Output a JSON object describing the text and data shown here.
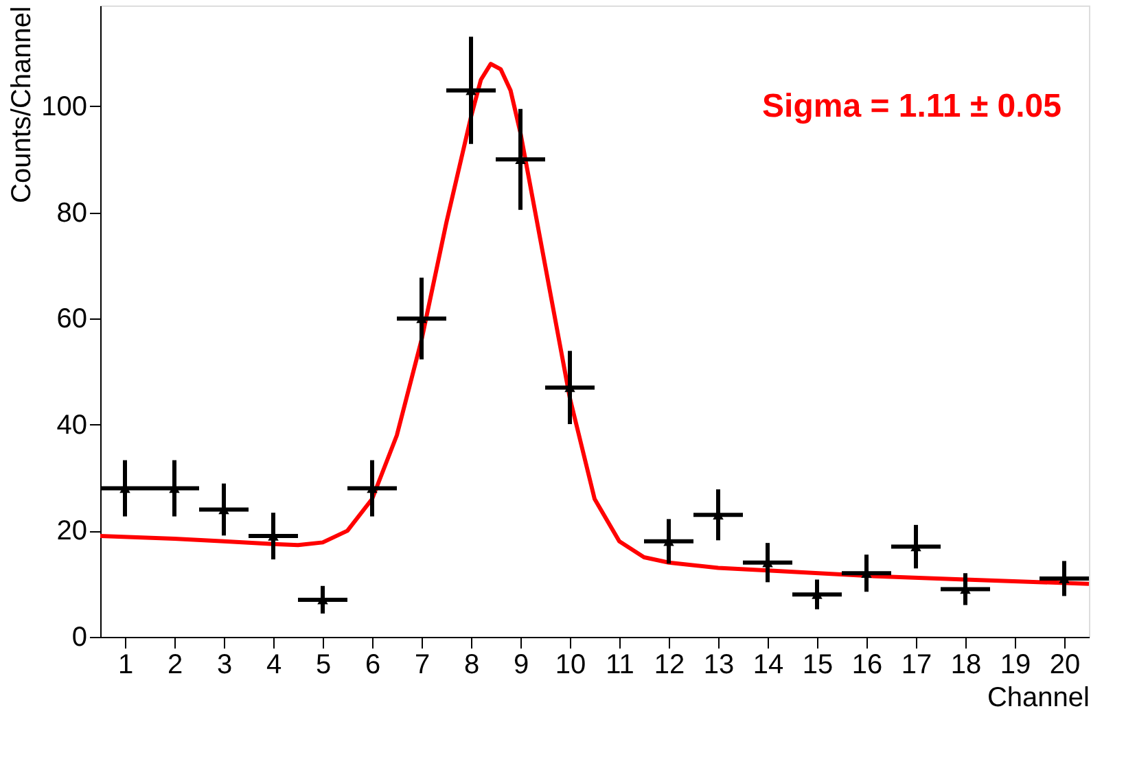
{
  "chart_data": {
    "type": "scatter",
    "xlabel": "Channel",
    "ylabel": "Counts/Channel",
    "xlim": [
      0.5,
      20.5
    ],
    "ylim": [
      0,
      119
    ],
    "xticks": [
      1,
      2,
      3,
      4,
      5,
      6,
      7,
      8,
      9,
      10,
      11,
      12,
      13,
      14,
      15,
      16,
      17,
      18,
      19,
      20
    ],
    "yticks": [
      0,
      20,
      40,
      60,
      80,
      100
    ],
    "annotations": [
      "Sigma = 1.11 ± 0.05"
    ],
    "series": [
      {
        "type": "line",
        "color": "#ff0000",
        "x": [
          0.5,
          2,
          3,
          4,
          4.5,
          5,
          5.5,
          6,
          6.5,
          7,
          7.5,
          8,
          8.2,
          8.4,
          8.6,
          8.8,
          9,
          9.5,
          10,
          10.5,
          11,
          11.5,
          12,
          13,
          14,
          16,
          18,
          20.5
        ],
        "values": [
          19,
          18.5,
          18,
          17.5,
          17.3,
          17.8,
          20,
          26,
          38,
          56,
          78,
          98,
          105,
          108,
          107,
          103,
          95,
          70,
          45,
          26,
          18,
          15,
          14,
          13,
          12.5,
          11.5,
          10.8,
          10
        ]
      },
      {
        "marker": "triangle",
        "color": "#000000",
        "x": [
          1,
          2,
          3,
          4,
          5,
          6,
          7,
          8,
          9,
          10,
          12,
          13,
          14,
          15,
          16,
          17,
          18,
          20
        ],
        "values": [
          28,
          28,
          24,
          19,
          7,
          28,
          60,
          103,
          90,
          47,
          18,
          23,
          14,
          8,
          12,
          17,
          9,
          11
        ],
        "errors": [
          5.3,
          5.3,
          4.9,
          4.4,
          2.6,
          5.3,
          7.7,
          10.1,
          9.5,
          6.9,
          4.2,
          4.8,
          3.7,
          2.8,
          3.5,
          4.1,
          3,
          3.3
        ],
        "xerrors": [
          0.5,
          0.5,
          0.5,
          0.5,
          0.5,
          0.5,
          0.5,
          0.5,
          0.5,
          0.5,
          0.5,
          0.5,
          0.5,
          0.5,
          0.5,
          0.5,
          0.5,
          0.5
        ]
      }
    ]
  }
}
